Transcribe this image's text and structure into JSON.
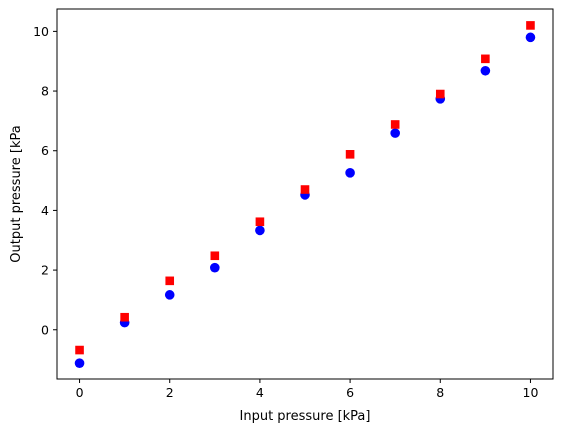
{
  "chart_data": {
    "type": "scatter",
    "xlabel": "Input pressure [kPa]",
    "ylabel": "Output pressure [kPa",
    "xlim": [
      -0.5,
      10.5
    ],
    "ylim": [
      -1.65,
      10.75
    ],
    "xticks": [
      0,
      2,
      4,
      6,
      8,
      10
    ],
    "yticks": [
      0,
      2,
      4,
      6,
      8,
      10
    ],
    "grid": false,
    "legend": "none",
    "series": [
      {
        "marker": "circle",
        "color": "#0000ff",
        "x": [
          0,
          1,
          2,
          3,
          4,
          5,
          6,
          7,
          8,
          9,
          10
        ],
        "y": [
          -1.12,
          0.24,
          1.17,
          2.08,
          3.33,
          4.52,
          5.26,
          6.59,
          7.74,
          8.68,
          9.8
        ]
      },
      {
        "marker": "square",
        "color": "#ff0000",
        "x": [
          0,
          1,
          2,
          3,
          4,
          5,
          6,
          7,
          8,
          9,
          10
        ],
        "y": [
          -0.68,
          0.42,
          1.64,
          2.48,
          3.62,
          4.7,
          5.88,
          6.88,
          7.9,
          9.08,
          10.2
        ]
      }
    ]
  }
}
